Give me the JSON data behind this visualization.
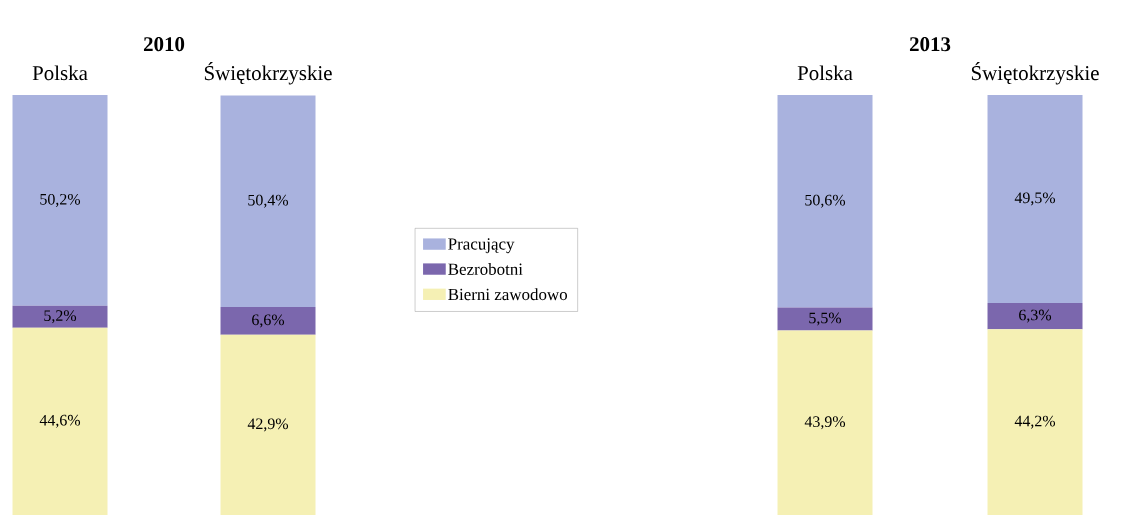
{
  "chart_data": [
    {
      "type": "bar",
      "title": "2010",
      "categories": [
        "Polska",
        "Świętokrzyskie"
      ],
      "stacked": true,
      "ylim": [
        0,
        100
      ],
      "tick_labels": "x",
      "legend": "right",
      "series": [
        {
          "name": "Bierni zawodowo",
          "color": "#f5f0b4",
          "values": [
            44.6,
            42.9
          ],
          "value_labels": [
            "44,6%",
            "42,9%"
          ]
        },
        {
          "name": "Bezrobotni",
          "color": "#7b67ad",
          "values": [
            5.2,
            6.6
          ],
          "value_labels": [
            "5,2%",
            "6,6%"
          ]
        },
        {
          "name": "Pracujący",
          "color": "#a9b2de",
          "values": [
            50.2,
            50.4
          ],
          "value_labels": [
            "50,2%",
            "50,4%"
          ]
        }
      ]
    },
    {
      "type": "bar",
      "title": "2013",
      "categories": [
        "Polska",
        "Świętokrzyskie"
      ],
      "stacked": true,
      "ylim": [
        0,
        100
      ],
      "tick_labels": "x",
      "series": [
        {
          "color": "#f5f0b4",
          "values": [
            43.9,
            44.2
          ],
          "value_labels": [
            "43,9%",
            "44,2%"
          ]
        },
        {
          "color": "#7b67ad",
          "values": [
            5.5,
            6.3
          ],
          "value_labels": [
            "5,5%",
            "6,3%"
          ]
        },
        {
          "color": "#a9b2de",
          "values": [
            50.6,
            49.5
          ],
          "value_labels": [
            "50,6%",
            "49,5%"
          ]
        }
      ]
    }
  ]
}
